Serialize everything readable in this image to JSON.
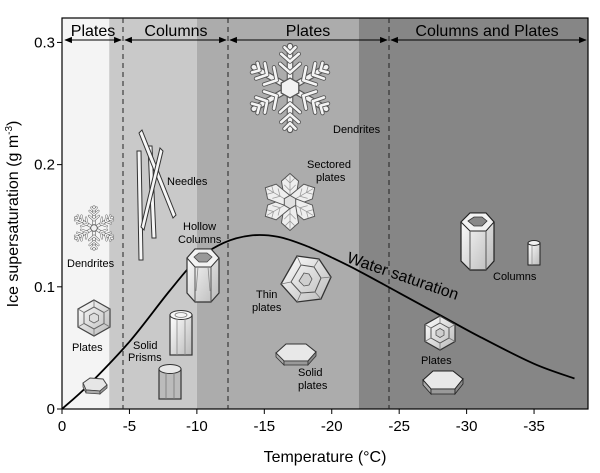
{
  "chart_data": {
    "type": "diagram",
    "xlabel": "Temperature (°C)",
    "ylabel_main": "Ice supersaturation (g m",
    "ylabel_sup": "-3",
    "ylabel_close": ")",
    "x_ticks": [
      "0",
      "-5",
      "-10",
      "-15",
      "-20",
      "-25",
      "-30",
      "-35"
    ],
    "y_ticks": [
      "0",
      "0.1",
      "0.2",
      "0.3"
    ],
    "regions": [
      {
        "label": "Plates",
        "from": 0,
        "to": -3.5
      },
      {
        "label": "Columns",
        "from": -3.5,
        "to": -10
      },
      {
        "label": "Plates",
        "from": -10,
        "to": -22
      },
      {
        "label": "Columns and Plates",
        "from": -22,
        "to": -39
      }
    ],
    "curve_label": "Water saturation",
    "crystal_labels": {
      "dendrites_left": "Dendrites",
      "plates_left": "Plates",
      "needles": "Needles",
      "hollow_1": "Hollow",
      "hollow_2": "Columns",
      "solid_prisms_1": "Solid",
      "solid_prisms_2": "Prisms",
      "dendrites_top": "Dendrites",
      "sectored_1": "Sectored",
      "sectored_2": "plates",
      "thin_1": "Thin",
      "thin_2": "plates",
      "solid_plates_1": "Solid",
      "solid_plates_2": "plates",
      "plates_right": "Plates",
      "columns_right": "Columns"
    },
    "water_saturation_curve": [
      {
        "x": 0,
        "y": 0
      },
      {
        "x": -2,
        "y": 0.02
      },
      {
        "x": -5,
        "y": 0.055
      },
      {
        "x": -8,
        "y": 0.097
      },
      {
        "x": -10,
        "y": 0.122
      },
      {
        "x": -12,
        "y": 0.136
      },
      {
        "x": -14,
        "y": 0.142
      },
      {
        "x": -16,
        "y": 0.141
      },
      {
        "x": -18,
        "y": 0.134
      },
      {
        "x": -20,
        "y": 0.124
      },
      {
        "x": -22,
        "y": 0.113
      },
      {
        "x": -25,
        "y": 0.095
      },
      {
        "x": -28,
        "y": 0.077
      },
      {
        "x": -31,
        "y": 0.059
      },
      {
        "x": -35,
        "y": 0.037
      },
      {
        "x": -38,
        "y": 0.025
      }
    ],
    "xlim": [
      0,
      -39
    ],
    "ylim": [
      0,
      0.32
    ],
    "region_colors": [
      "#f4f4f4",
      "#c9c9c9",
      "#acacac",
      "#868686"
    ]
  }
}
